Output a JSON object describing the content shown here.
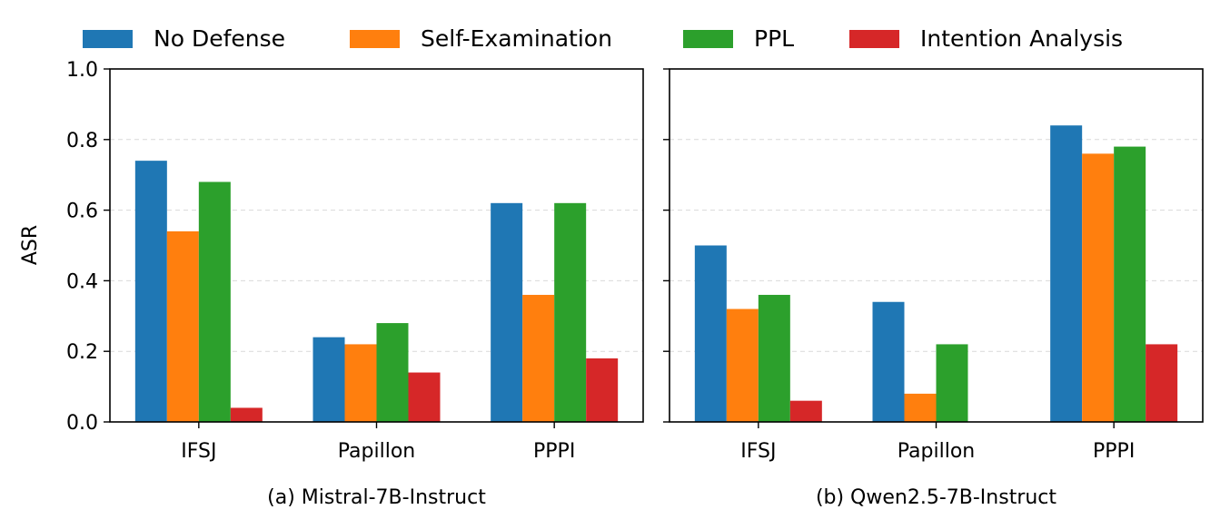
{
  "legend": {
    "placement": "top",
    "items": [
      {
        "label": "No Defense",
        "color": "#1f77b4"
      },
      {
        "label": "Self-Examination",
        "color": "#ff7f0e"
      },
      {
        "label": "PPL",
        "color": "#2ca02c"
      },
      {
        "label": "Intention Analysis",
        "color": "#d62728"
      }
    ]
  },
  "shared_ylabel": "ASR",
  "chart_data": [
    {
      "type": "bar",
      "caption": "(a) Mistral-7B-Instruct",
      "categories": [
        "IFSJ",
        "Papillon",
        "PPPI"
      ],
      "series": [
        {
          "name": "No Defense",
          "values": [
            0.74,
            0.24,
            0.62
          ]
        },
        {
          "name": "Self-Examination",
          "values": [
            0.54,
            0.22,
            0.36
          ]
        },
        {
          "name": "PPL",
          "values": [
            0.68,
            0.28,
            0.62
          ]
        },
        {
          "name": "Intention Analysis",
          "values": [
            0.04,
            0.14,
            0.18
          ]
        }
      ],
      "ylabel": "ASR",
      "ylim": [
        0.0,
        1.0
      ],
      "yticks": [
        "0.0",
        "0.2",
        "0.4",
        "0.6",
        "0.8",
        "1.0"
      ],
      "grid": "horizontal dashed"
    },
    {
      "type": "bar",
      "caption": "(b) Qwen2.5-7B-Instruct",
      "categories": [
        "IFSJ",
        "Papillon",
        "PPPI"
      ],
      "series": [
        {
          "name": "No Defense",
          "values": [
            0.5,
            0.34,
            0.84
          ]
        },
        {
          "name": "Self-Examination",
          "values": [
            0.32,
            0.08,
            0.76
          ]
        },
        {
          "name": "PPL",
          "values": [
            0.36,
            0.22,
            0.78
          ]
        },
        {
          "name": "Intention Analysis",
          "values": [
            0.06,
            0.0,
            0.22
          ]
        }
      ],
      "ylabel": "",
      "ylim": [
        0.0,
        1.0
      ],
      "yticks": [
        "0.0",
        "0.2",
        "0.4",
        "0.6",
        "0.8",
        "1.0"
      ],
      "grid": "horizontal dashed"
    }
  ]
}
